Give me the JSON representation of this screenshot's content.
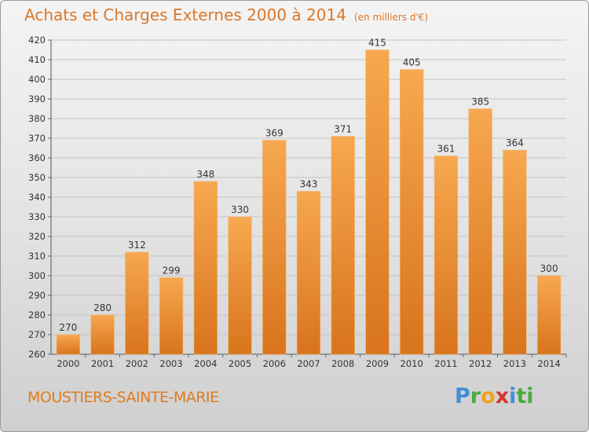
{
  "chart_data": {
    "type": "bar",
    "title": "Achats et Charges Externes 2000 à 2014",
    "unit_note": "(en milliers d'€)",
    "categories": [
      "2000",
      "2001",
      "2002",
      "2003",
      "2004",
      "2005",
      "2006",
      "2007",
      "2008",
      "2009",
      "2010",
      "2011",
      "2012",
      "2013",
      "2014"
    ],
    "values": [
      270,
      280,
      312,
      299,
      348,
      330,
      369,
      343,
      371,
      415,
      405,
      361,
      385,
      364,
      300
    ],
    "ylim": [
      260,
      420
    ],
    "yticks": [
      260,
      270,
      280,
      290,
      300,
      310,
      320,
      330,
      340,
      350,
      360,
      370,
      380,
      390,
      400,
      410,
      420
    ],
    "grid": true,
    "bar_color_top": "#f7a850",
    "bar_color_bottom": "#d8741c"
  },
  "place_name": "MOUSTIERS-SAINTE-MARIE",
  "logo": {
    "letters": [
      "P",
      "r",
      "o",
      "x",
      "i",
      "ti"
    ]
  }
}
